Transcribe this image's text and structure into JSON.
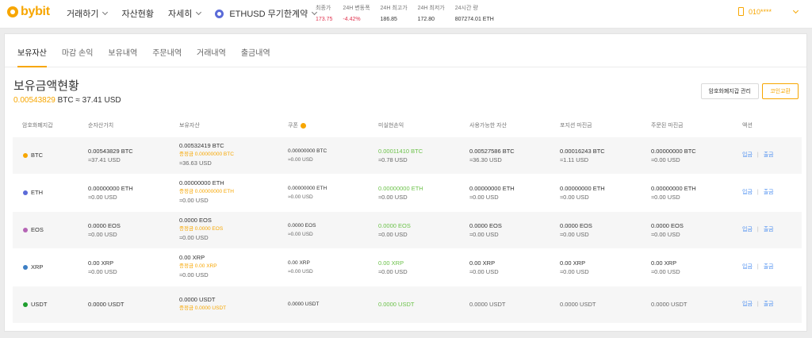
{
  "header": {
    "logo_text": "bybit",
    "menu": [
      "거래하기",
      "자산현황",
      "자세히"
    ],
    "contract": "ETHUSD 무기한계약",
    "tickers": [
      {
        "label": "최종가",
        "value": "173.75",
        "color": "red"
      },
      {
        "label": "24H 변동폭",
        "value": "-4.42%",
        "color": "red"
      },
      {
        "label": "24H 최고가",
        "value": "186.85",
        "color": ""
      },
      {
        "label": "24H 최저가",
        "value": "172.80",
        "color": ""
      },
      {
        "label": "24시간 량",
        "value": "807274.01 ETH",
        "color": ""
      }
    ],
    "user": "010****"
  },
  "tabs": [
    "보유자산",
    "마감 손익",
    "보유내역",
    "주문내역",
    "거래내역",
    "출금내역"
  ],
  "active_tab": 0,
  "overview": {
    "title": "보유금액현황",
    "btc_amount": "0.00543829",
    "btc_unit": " BTC",
    "usd_text": " ≈ 37.41 USD",
    "manage_button": "암호화폐지갑 관리",
    "exchange_button": "코인교환"
  },
  "columns": [
    "암호화폐지갑",
    "순자산가치",
    "보유자산",
    "쿠폰",
    "미실현손익",
    "사용가능한 자산",
    "포지션 마진금",
    "주문된 마진금",
    "액션"
  ],
  "rows": [
    {
      "coin": "BTC",
      "color": "#f7a600",
      "shaded": true,
      "nav": "0.00543829 BTC",
      "nav_usd": "≈37.41 USD",
      "holding": "0.00532419 BTC",
      "holding_locked": "증정금 0.00000000 BTC",
      "holding_usd": "≈36.63 USD",
      "coupon": "0.00000000 BTC",
      "coupon_usd": "≈0.00 USD",
      "pnl": "0.00011410 BTC",
      "pnl_usd": "≈0.78 USD",
      "available": "0.00527586 BTC",
      "available_usd": "≈36.30 USD",
      "position_margin": "0.00016243 BTC",
      "position_margin_usd": "≈1.11 USD",
      "order_margin": "0.00000000 BTC",
      "order_margin_usd": "≈0.00 USD",
      "deposit": "입금",
      "withdraw": "출금"
    },
    {
      "coin": "ETH",
      "color": "#5b6bd8",
      "shaded": false,
      "nav": "0.00000000 ETH",
      "nav_usd": "≈0.00 USD",
      "holding": "0.00000000 ETH",
      "holding_locked": "증정금 0.00000000 ETH",
      "holding_usd": "≈0.00 USD",
      "coupon": "0.00000000 ETH",
      "coupon_usd": "≈0.00 USD",
      "pnl": "0.00000000 ETH",
      "pnl_usd": "≈0.00 USD",
      "available": "0.00000000 ETH",
      "available_usd": "≈0.00 USD",
      "position_margin": "0.00000000 ETH",
      "position_margin_usd": "≈0.00 USD",
      "order_margin": "0.00000000 ETH",
      "order_margin_usd": "≈0.00 USD",
      "deposit": "입금",
      "withdraw": "출금"
    },
    {
      "coin": "EOS",
      "color": "#b565b5",
      "shaded": true,
      "nav": "0.0000 EOS",
      "nav_usd": "≈0.00 USD",
      "holding": "0.0000 EOS",
      "holding_locked": "증정금 0.0000 EOS",
      "holding_usd": "≈0.00 USD",
      "coupon": "0.0000 EOS",
      "coupon_usd": "≈0.00 USD",
      "pnl": "0.0000 EOS",
      "pnl_usd": "≈0.00 USD",
      "available": "0.0000 EOS",
      "available_usd": "≈0.00 USD",
      "position_margin": "0.0000 EOS",
      "position_margin_usd": "≈0.00 USD",
      "order_margin": "0.0000 EOS",
      "order_margin_usd": "≈0.00 USD",
      "deposit": "입금",
      "withdraw": "출금"
    },
    {
      "coin": "XRP",
      "color": "#3d7fc4",
      "shaded": false,
      "nav": "0.00 XRP",
      "nav_usd": "≈0.00 USD",
      "holding": "0.00 XRP",
      "holding_locked": "증정금 0.00 XRP",
      "holding_usd": "≈0.00 USD",
      "coupon": "0.00 XRP",
      "coupon_usd": "≈0.00 USD",
      "pnl": "0.00 XRP",
      "pnl_usd": "≈0.00 USD",
      "available": "0.00 XRP",
      "available_usd": "≈0.00 USD",
      "position_margin": "0.00 XRP",
      "position_margin_usd": "≈0.00 USD",
      "order_margin": "0.00 XRP",
      "order_margin_usd": "≈0.00 USD",
      "deposit": "입금",
      "withdraw": "출금"
    },
    {
      "coin": "USDT",
      "color": "#1e9e2e",
      "shaded": true,
      "nav": "0.0000 USDT",
      "nav_usd": "",
      "holding": "0.0000 USDT",
      "holding_locked": "증정금 0.0000 USDT",
      "holding_usd": "",
      "coupon": "0.0000 USDT",
      "coupon_usd": "",
      "pnl": "0.0000 USDT",
      "pnl_usd": "",
      "available": "0.0000 USDT",
      "available_usd": "",
      "position_margin": "0.0000 USDT",
      "position_margin_usd": "",
      "order_margin": "0.0000 USDT",
      "order_margin_usd": "",
      "deposit": "입금",
      "withdraw": "출금"
    }
  ]
}
